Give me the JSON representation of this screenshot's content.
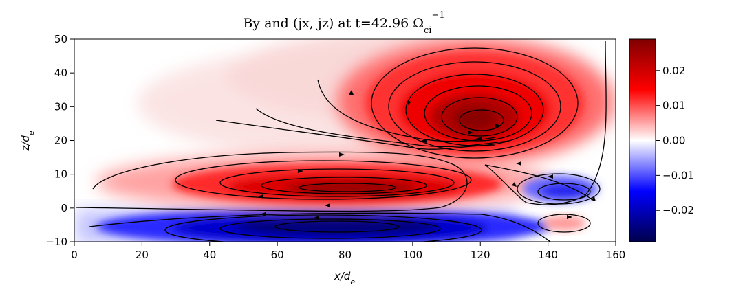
{
  "chart_data": {
    "type": "heatmap",
    "title": "By and (jx, jz) at t=42.96 Ω_ci^-1",
    "title_parts": {
      "main": "By and (jx, jz) at t=42.96 Ω",
      "subscript": "ci",
      "superscript": "−1"
    },
    "xlabel": "x/d_e",
    "ylabel": "z/d_e",
    "xlabel_parts": {
      "base": "x/d",
      "sub": "e"
    },
    "ylabel_parts": {
      "base": "z/d",
      "sub": "e"
    },
    "xlim": [
      0,
      160
    ],
    "ylim": [
      -10,
      50
    ],
    "xticks": [
      0,
      20,
      40,
      60,
      80,
      100,
      120,
      140,
      160
    ],
    "yticks": [
      -10,
      0,
      10,
      20,
      30,
      40,
      50
    ],
    "x_tick_labels": [
      "0",
      "20",
      "40",
      "60",
      "80",
      "100",
      "120",
      "140",
      "160"
    ],
    "y_tick_labels": [
      "−10",
      "0",
      "10",
      "20",
      "30",
      "40",
      "50"
    ],
    "colorbar": {
      "colormap": "seismic",
      "range": [
        -0.029,
        0.029
      ],
      "ticks": [
        -0.02,
        -0.01,
        0.0,
        0.01,
        0.02
      ],
      "tick_labels": [
        "−0.02",
        "−0.01",
        "0.00",
        "0.01",
        "0.02"
      ],
      "colors": {
        "min": "#00004c",
        "low": "#0000ff",
        "mid": "#ffffff",
        "high": "#ff0000",
        "max": "#800000"
      }
    },
    "regions": [
      {
        "sign": "positive",
        "center": [
          117,
          26
        ],
        "peak": 0.026
      },
      {
        "sign": "positive",
        "center": [
          82,
          6
        ],
        "peak": 0.022
      },
      {
        "sign": "negative",
        "center": [
          80,
          -5
        ],
        "peak": -0.021
      },
      {
        "sign": "negative",
        "center": [
          147,
          4
        ],
        "peak": -0.011
      },
      {
        "sign": "positive",
        "center": [
          147,
          -4
        ],
        "peak": 0.006
      }
    ],
    "grid": false
  }
}
